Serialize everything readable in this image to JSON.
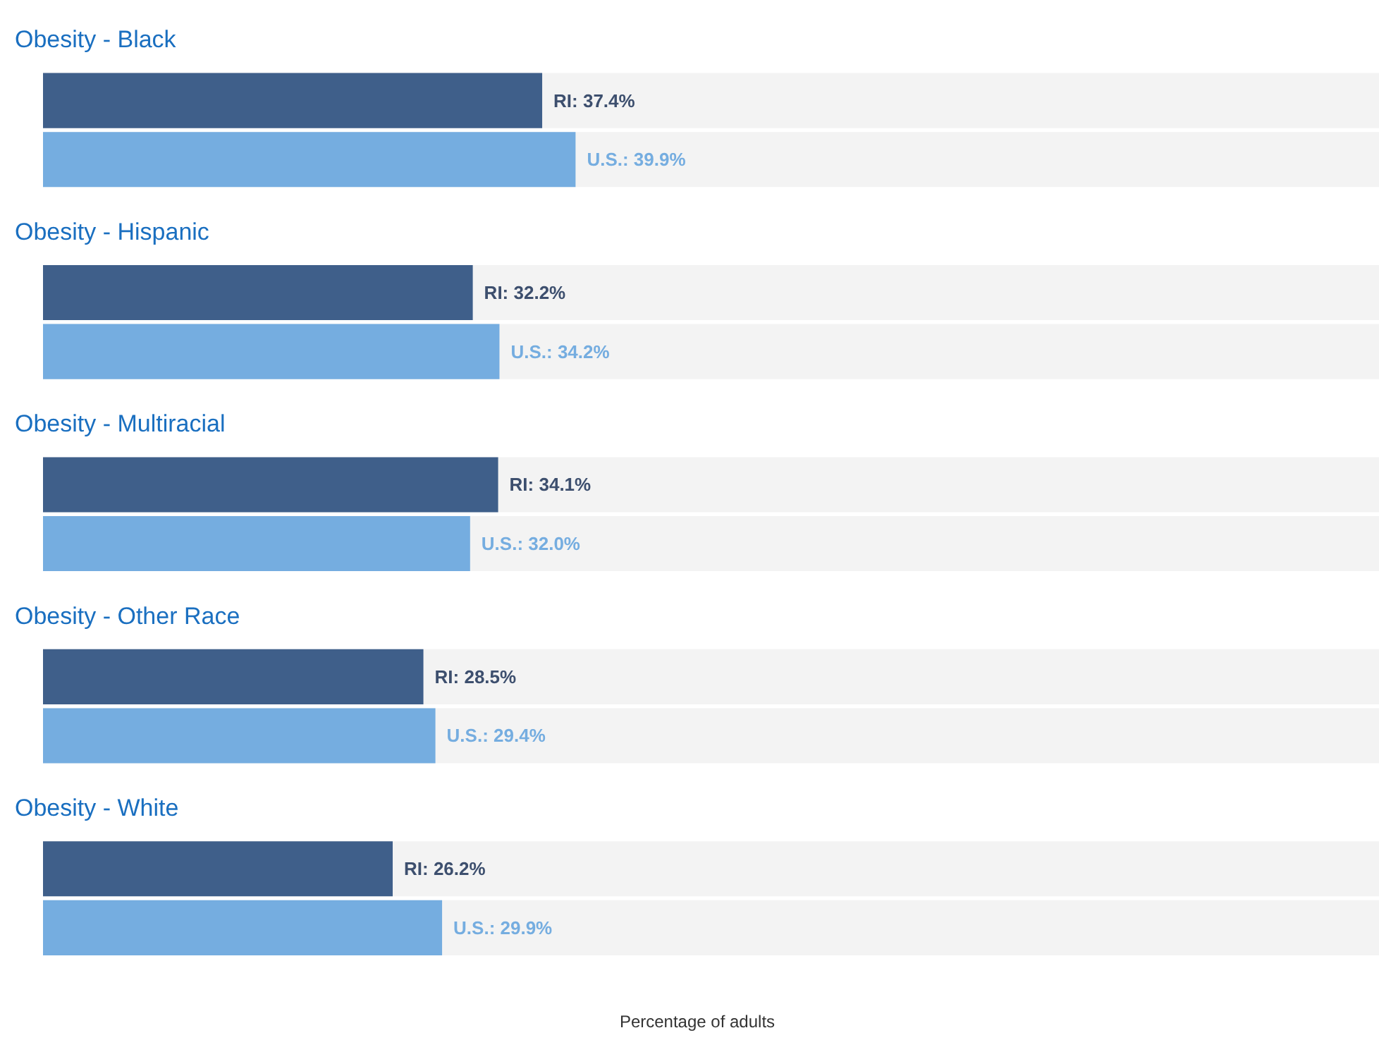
{
  "chart_data": {
    "type": "bar",
    "orientation": "horizontal",
    "xlabel": "Percentage of adults",
    "categories": [
      "Obesity - Black",
      "Obesity - Hispanic",
      "Obesity - Multiracial",
      "Obesity - Other Race",
      "Obesity - White"
    ],
    "tick_labels": false,
    "grid": false,
    "series": [
      {
        "color": "#3f5f8a",
        "values": [
          37.4,
          32.2,
          34.1,
          28.5,
          26.2
        ],
        "value_labels": [
          "RI: 37.4%",
          "RI: 32.2%",
          "RI: 34.1%",
          "RI: 28.5%",
          "RI: 26.2%"
        ]
      },
      {
        "color": "#75ade0",
        "values": [
          39.9,
          34.2,
          32.0,
          29.4,
          29.9
        ],
        "value_labels": [
          "U.S.: 39.9%",
          "U.S.: 34.2%",
          "U.S.: 32.0%",
          "U.S.: 29.4%",
          "U.S.: 29.9%"
        ]
      }
    ]
  }
}
